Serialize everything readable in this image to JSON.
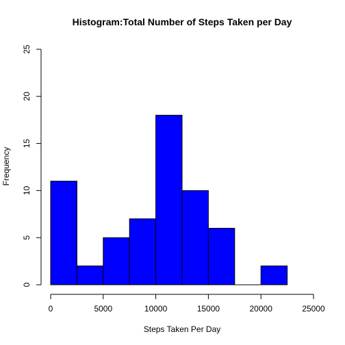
{
  "chart_data": {
    "type": "bar",
    "title": "Histogram:Total Number of Steps Taken per Day",
    "xlabel": "Steps Taken Per Day",
    "ylabel": "Frequency",
    "bins": [
      {
        "start": 0,
        "end": 2500,
        "count": 11
      },
      {
        "start": 2500,
        "end": 5000,
        "count": 2
      },
      {
        "start": 5000,
        "end": 7500,
        "count": 5
      },
      {
        "start": 7500,
        "end": 10000,
        "count": 7
      },
      {
        "start": 10000,
        "end": 12500,
        "count": 18
      },
      {
        "start": 12500,
        "end": 15000,
        "count": 10
      },
      {
        "start": 15000,
        "end": 17500,
        "count": 6
      },
      {
        "start": 17500,
        "end": 20000,
        "count": 0
      },
      {
        "start": 20000,
        "end": 22500,
        "count": 2
      }
    ],
    "xlim": [
      0,
      25000
    ],
    "ylim": [
      0,
      25
    ],
    "xticks": [
      0,
      5000,
      10000,
      15000,
      20000,
      25000
    ],
    "yticks": [
      0,
      5,
      10,
      15,
      20,
      25
    ],
    "bar_color": "#0000ff",
    "grid": false,
    "legend": "none"
  }
}
